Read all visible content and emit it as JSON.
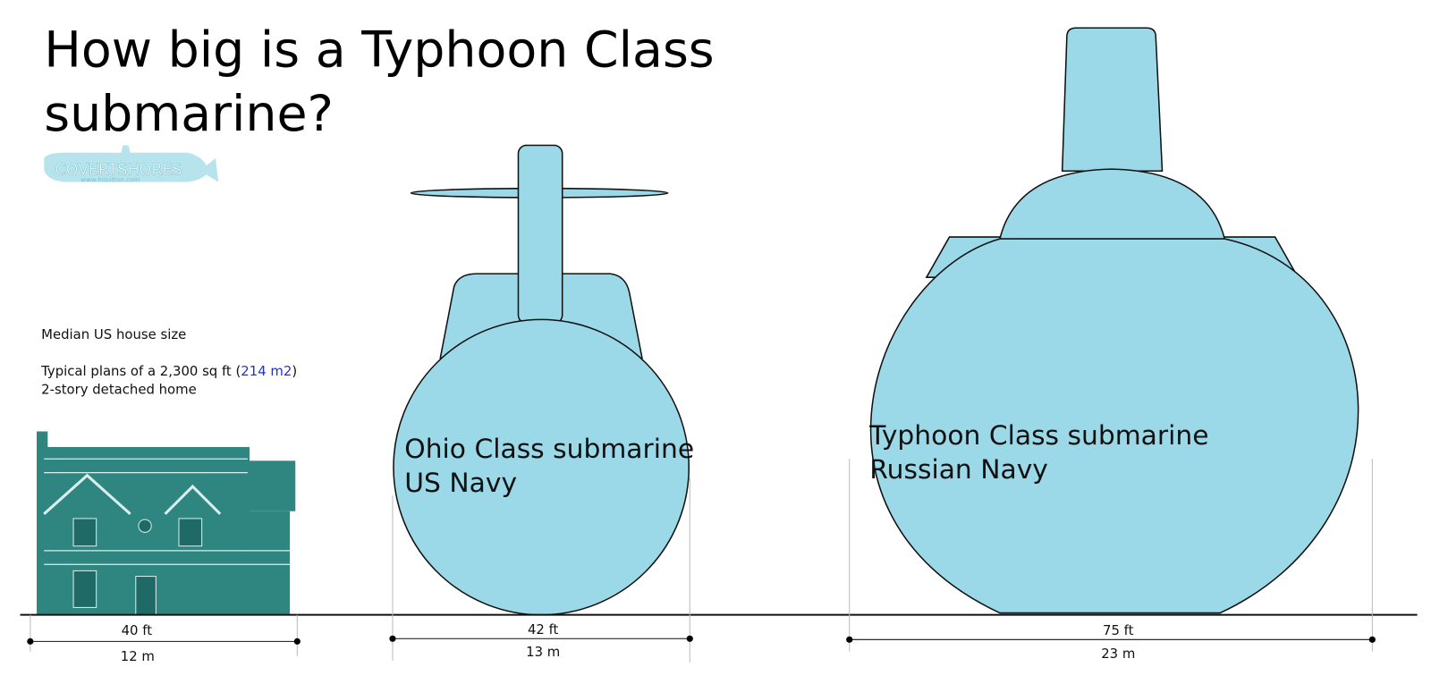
{
  "title": "How big is a Typhoon Class submarine?",
  "logo": {
    "name": "COVERTSHORES",
    "url": "www.hisutton.com"
  },
  "house": {
    "caption": "Median US house size",
    "plan_prefix": "Typical plans of a 2,300 sq ft (",
    "plan_metric": "214 m2",
    "plan_suffix": ")",
    "plan_line2": "2-story detached home",
    "width_ft": "40 ft",
    "width_m": "12 m"
  },
  "ohio": {
    "name": "Ohio Class submarine",
    "navy": "US Navy",
    "width_ft": "42 ft",
    "width_m": "13 m"
  },
  "typhoon": {
    "name": "Typhoon Class submarine",
    "navy": "Russian Navy",
    "width_ft": "75 ft",
    "width_m": "23 m"
  }
}
